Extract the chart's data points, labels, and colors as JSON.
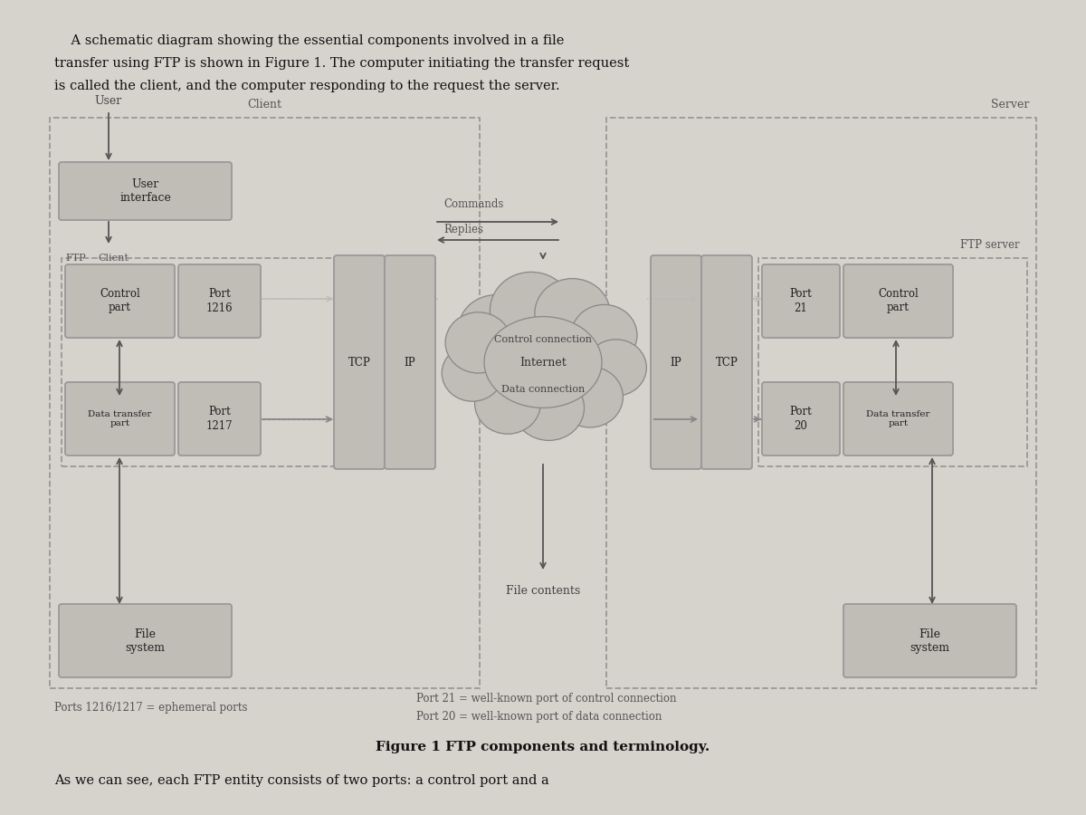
{
  "bg_color": "#d6d2cc",
  "box_fill": "#c0bcb6",
  "box_edge": "#999999",
  "dashed_edge": "#999999",
  "arrow_color": "#555555",
  "title": "Figure 1 FTP components and terminology.",
  "paragraph_line1": "    A schematic diagram showing the essential components involved in a file",
  "paragraph_line2": "transfer using FTP is shown in Figure 1. The computer initiating the transfer request",
  "paragraph_line3": "is called the client, and the computer responding to the request the server.",
  "footer_left": "Ports 1216/1217 = ephemeral ports",
  "footer_right1": "Port 21 = well-known port of control connection",
  "footer_right2": "Port 20 = well-known port of data connection",
  "bottom_line": "As we can see, each FTP entity consists of two ports: a control port and a",
  "labels": {
    "user": "User",
    "client_label": "Client",
    "server_label": "Server",
    "ftp_client_label": "FTP  Client",
    "ftp_server_label": "FTP server",
    "user_interface": "User\ninterface",
    "control_part_client": "Control\npart",
    "port_1216": "Port\n1216",
    "data_transfer_client": "Data transfer\npart",
    "port_1217": "Port\n1217",
    "tcp_client": "TCP",
    "ip_client": "IP",
    "ip_server": "IP",
    "tcp_server": "TCP",
    "control_connection": "Control connection",
    "data_connection": "Data connection",
    "internet": "Internet",
    "port_21": "Port\n21",
    "control_part_server": "Control\npart",
    "port_20": "Port\n20",
    "data_transfer_server": "Data transfer\npart",
    "file_system_client": "File\nsystem",
    "file_system_server": "File\nsystem",
    "file_contents": "File contents",
    "commands": "Commands",
    "replies": "Replies"
  }
}
